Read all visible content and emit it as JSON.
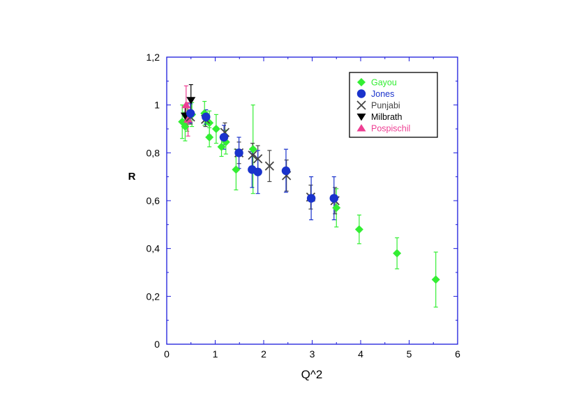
{
  "chart_data": {
    "type": "scatter",
    "title": "",
    "xlabel": "Q^2",
    "ylabel": "R",
    "xlim": [
      0,
      6
    ],
    "ylim": [
      0,
      1.2
    ],
    "xticks": [
      "0",
      "1",
      "2",
      "3",
      "4",
      "5",
      "6"
    ],
    "yticks": [
      "0",
      "0,2",
      "0,4",
      "0,6",
      "0,8",
      "1",
      "1,2"
    ],
    "legend_position": "top-right",
    "grid": false,
    "frame_color": "#1a1adb",
    "series": [
      {
        "name": "Gayou",
        "color": "#33ee33",
        "marker": "diamond",
        "errbar_color": "#33ee33",
        "points": [
          {
            "x": 0.32,
            "y": 0.93,
            "err": 0.07
          },
          {
            "x": 0.38,
            "y": 0.91,
            "err": 0.06
          },
          {
            "x": 0.42,
            "y": 0.95,
            "err": 0.06
          },
          {
            "x": 0.52,
            "y": 0.96,
            "err": 0.05
          },
          {
            "x": 0.78,
            "y": 0.965,
            "err": 0.05
          },
          {
            "x": 0.88,
            "y": 0.925,
            "err": 0.05
          },
          {
            "x": 0.88,
            "y": 0.865,
            "err": 0.04
          },
          {
            "x": 1.02,
            "y": 0.9,
            "err": 0.06
          },
          {
            "x": 1.13,
            "y": 0.825,
            "err": 0.04
          },
          {
            "x": 1.22,
            "y": 0.845,
            "err": 0.05
          },
          {
            "x": 1.43,
            "y": 0.73,
            "err": 0.085
          },
          {
            "x": 1.78,
            "y": 0.815,
            "err": 0.185
          },
          {
            "x": 3.5,
            "y": 0.57,
            "err": 0.08
          },
          {
            "x": 3.97,
            "y": 0.48,
            "err": 0.06
          },
          {
            "x": 4.75,
            "y": 0.38,
            "err": 0.065
          },
          {
            "x": 5.55,
            "y": 0.27,
            "err": 0.115
          }
        ]
      },
      {
        "name": "Jones",
        "color": "#1a33cc",
        "marker": "circle",
        "errbar_color": "#1a33cc",
        "points": [
          {
            "x": 0.49,
            "y": 0.965,
            "err": 0.04
          },
          {
            "x": 0.81,
            "y": 0.95,
            "err": 0.03
          },
          {
            "x": 1.18,
            "y": 0.865,
            "err": 0.05
          },
          {
            "x": 1.49,
            "y": 0.8,
            "err": 0.065
          },
          {
            "x": 1.76,
            "y": 0.73,
            "err": 0.075
          },
          {
            "x": 1.88,
            "y": 0.72,
            "err": 0.09
          },
          {
            "x": 2.46,
            "y": 0.725,
            "err": 0.09
          },
          {
            "x": 2.98,
            "y": 0.61,
            "err": 0.09
          },
          {
            "x": 3.45,
            "y": 0.61,
            "err": 0.09
          }
        ]
      },
      {
        "name": "Punjabi",
        "color": "#444444",
        "marker": "cross",
        "errbar_color": "#444444",
        "points": [
          {
            "x": 0.49,
            "y": 0.95,
            "err": 0.03
          },
          {
            "x": 0.8,
            "y": 0.94,
            "err": 0.03
          },
          {
            "x": 1.2,
            "y": 0.885,
            "err": 0.04
          },
          {
            "x": 1.49,
            "y": 0.8,
            "err": 0.045
          },
          {
            "x": 1.77,
            "y": 0.79,
            "err": 0.05
          },
          {
            "x": 1.88,
            "y": 0.775,
            "err": 0.055
          },
          {
            "x": 2.12,
            "y": 0.745,
            "err": 0.065
          },
          {
            "x": 2.47,
            "y": 0.705,
            "err": 0.065
          },
          {
            "x": 2.97,
            "y": 0.615,
            "err": 0.05
          },
          {
            "x": 3.47,
            "y": 0.6,
            "err": 0.055
          }
        ]
      },
      {
        "name": "Milbrath",
        "color": "#000000",
        "marker": "triangle-down",
        "errbar_color": "#000000",
        "points": [
          {
            "x": 0.38,
            "y": 0.955,
            "err": 0.035
          },
          {
            "x": 0.5,
            "y": 1.02,
            "err": 0.065
          }
        ]
      },
      {
        "name": "Pospischil",
        "color": "#ee3f93",
        "marker": "triangle-up",
        "errbar_color": "#ee3f93",
        "points": [
          {
            "x": 0.4,
            "y": 1.0,
            "err": 0.08
          },
          {
            "x": 0.44,
            "y": 0.94,
            "err": 0.07
          }
        ]
      }
    ]
  }
}
